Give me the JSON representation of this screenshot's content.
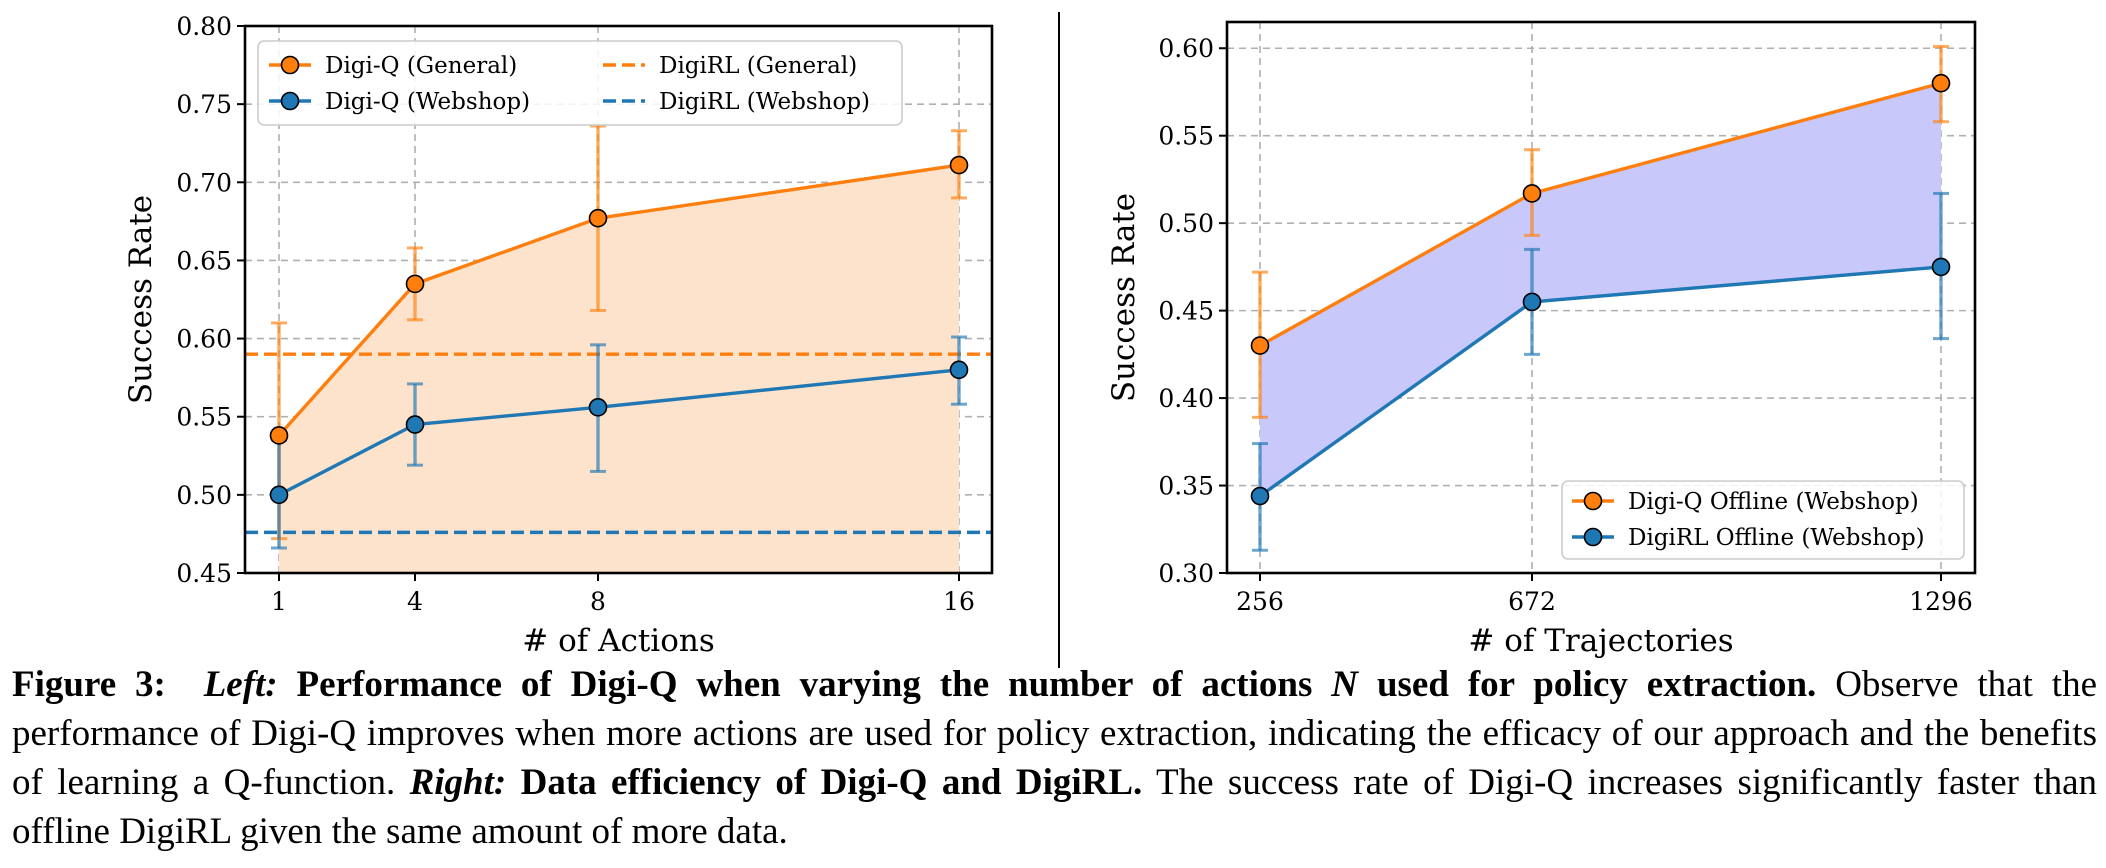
{
  "chart_data": [
    {
      "type": "line",
      "xlabel": "# of Actions",
      "ylabel": "Success Rate",
      "x": [
        1,
        4,
        8,
        16
      ],
      "x_tick_labels": [
        "1",
        "4",
        "8",
        "16"
      ],
      "ylim": [
        0.45,
        0.8
      ],
      "y_ticks": [
        "0.45",
        "0.50",
        "0.55",
        "0.60",
        "0.65",
        "0.70",
        "0.75",
        "0.80"
      ],
      "grid": true,
      "legend_position": "top",
      "series": [
        {
          "name": "Digi-Q (General)",
          "style": "line-marker",
          "color": "#ff7f0e",
          "fill": "#fde3cc",
          "values": [
            0.538,
            0.635,
            0.677,
            0.711
          ],
          "err_low": [
            0.472,
            0.612,
            0.618,
            0.69
          ],
          "err_high": [
            0.61,
            0.658,
            0.736,
            0.733
          ]
        },
        {
          "name": "Digi-Q (Webshop)",
          "style": "line-marker",
          "color": "#1f77b4",
          "fill": "#d2e3f0",
          "values": [
            0.5,
            0.545,
            0.556,
            0.58
          ],
          "err_low": [
            0.466,
            0.519,
            0.515,
            0.558
          ],
          "err_high": [
            0.535,
            0.571,
            0.596,
            0.601
          ]
        },
        {
          "name": "DigiRL (General)",
          "style": "dashed-baseline",
          "color": "#ff7f0e",
          "value": 0.59
        },
        {
          "name": "DigiRL (Webshop)",
          "style": "dashed-baseline",
          "color": "#1f77b4",
          "value": 0.476
        }
      ]
    },
    {
      "type": "line",
      "xlabel": "# of Trajectories",
      "ylabel": "Success Rate",
      "x": [
        256,
        672,
        1296
      ],
      "x_tick_labels": [
        "256",
        "672",
        "1296"
      ],
      "ylim": [
        0.3,
        0.615
      ],
      "y_ticks": [
        "0.30",
        "0.35",
        "0.40",
        "0.45",
        "0.50",
        "0.55",
        "0.60"
      ],
      "grid": true,
      "legend_position": "bottom-right",
      "fill_between": "#c8c8fa",
      "series": [
        {
          "name": "Digi-Q Offline (Webshop)",
          "color": "#ff7f0e",
          "values": [
            0.43,
            0.517,
            0.58
          ],
          "err_low": [
            0.389,
            0.493,
            0.558
          ],
          "err_high": [
            0.472,
            0.542,
            0.601
          ]
        },
        {
          "name": "DigiRL Offline (Webshop)",
          "color": "#1f77b4",
          "values": [
            0.344,
            0.455,
            0.475
          ],
          "err_low": [
            0.313,
            0.425,
            0.434
          ],
          "err_high": [
            0.374,
            0.485,
            0.517
          ]
        }
      ]
    }
  ],
  "caption": {
    "label": "Figure 3:",
    "left_label": "Left:",
    "left_title_pre": "Performance of Digi-Q when varying the number of actions",
    "left_title_var": "N",
    "left_title_post": "used for policy extraction.",
    "left_body": "Observe that the performance of Digi-Q improves when more actions are used for policy extraction, indicating the efficacy of our approach and the benefits of learning a Q-function.",
    "right_label": "Right:",
    "right_title": "Data efficiency of Digi-Q and DigiRL.",
    "right_body": "The success rate of Digi-Q increases significantly faster than offline DigiRL given the same amount of more data."
  }
}
